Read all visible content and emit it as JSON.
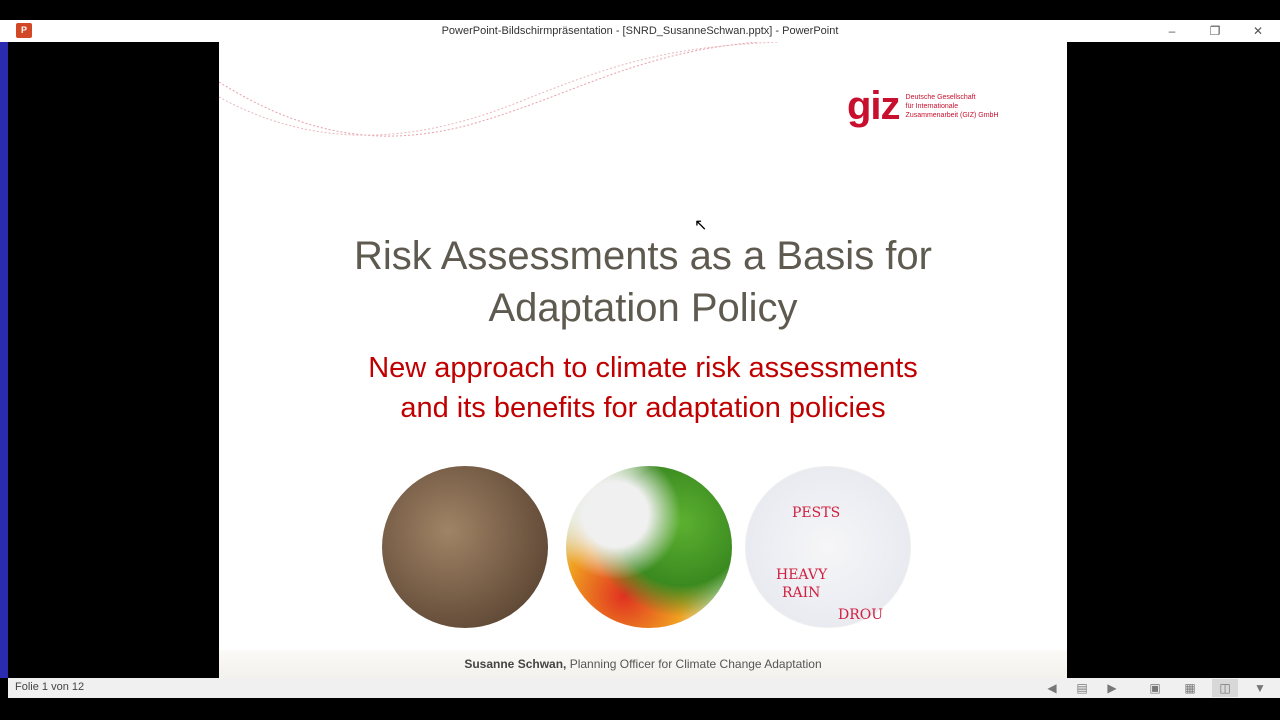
{
  "window": {
    "title": "PowerPoint-Bildschirmpräsentation - [SNRD_SusanneSchwan.pptx] - PowerPoint",
    "app_icon": "powerpoint-icon",
    "minimize_icon": "minimize-icon",
    "restore_icon": "restore-icon",
    "close_icon": "close-icon"
  },
  "slide": {
    "logo": {
      "mark": "giz",
      "text_line1": "Deutsche Gesellschaft",
      "text_line2": "für Internationale",
      "text_line3": "Zusammenarbeit (GIZ) GmbH",
      "color": "#c8102e"
    },
    "title_line1": "Risk Assessments as a Basis for",
    "title_line2": "Adaptation Policy",
    "subtitle_line1": "New approach to climate risk assessments",
    "subtitle_line2": "and its benefits for adaptation policies",
    "images": [
      "dry-cracked-soil-image",
      "risk-map-image",
      "sketch-map-image"
    ],
    "sketch_words": [
      "PESTS",
      "HEAVY",
      "RAIN",
      "DROU"
    ],
    "footer": {
      "name": "Susanne Schwan,",
      "role": " Planning Officer for Climate Change Adaptation"
    },
    "title_color": "#5f5a50",
    "subtitle_color": "#c00000"
  },
  "statusbar": {
    "slide_counter": "Folie 1 von 12",
    "buttons": [
      "previous-slide",
      "slide-sorter-notes",
      "next-slide",
      "normal-view",
      "slide-sorter-view",
      "reading-view",
      "slide-show-view"
    ],
    "active": "reading-view"
  }
}
